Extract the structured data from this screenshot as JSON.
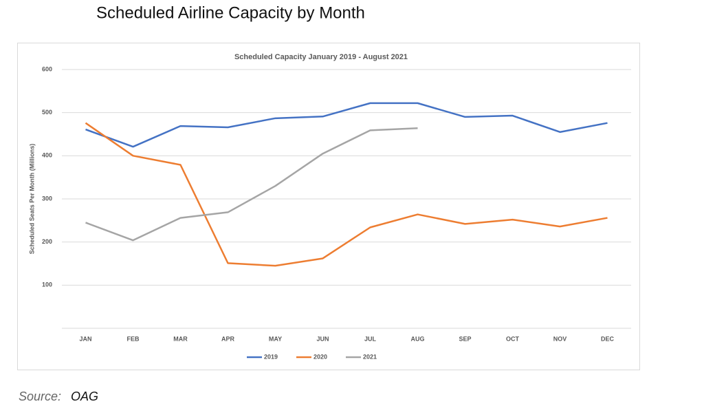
{
  "page_title": "Scheduled Airline Capacity by Month",
  "source_label": "Source:",
  "source_name": "OAG",
  "chart_data": {
    "type": "line",
    "title": "Scheduled Capacity January 2019  - August 2021",
    "y_label": "Scheduled Seats Per Month (Millions)",
    "categories": [
      "JAN",
      "FEB",
      "MAR",
      "APR",
      "MAY",
      "JUN",
      "JUL",
      "AUG",
      "SEP",
      "OCT",
      "NOV",
      "DEC"
    ],
    "series": [
      {
        "name": "2019",
        "color": "#4472c4",
        "values": [
          461,
          421,
          469,
          466,
          487,
          491,
          522,
          522,
          490,
          493,
          455,
          476
        ]
      },
      {
        "name": "2020",
        "color": "#ed7d31",
        "values": [
          476,
          400,
          379,
          151,
          145,
          162,
          234,
          264,
          242,
          252,
          236,
          256
        ]
      },
      {
        "name": "2021",
        "color": "#a5a5a5",
        "values": [
          245,
          204,
          256,
          269,
          330,
          405,
          459,
          464,
          null,
          null,
          null,
          null
        ]
      }
    ],
    "ylim": [
      0,
      600
    ],
    "yticks": [
      100,
      200,
      300,
      400,
      500,
      600
    ],
    "grid": true,
    "legend": "bottom"
  }
}
